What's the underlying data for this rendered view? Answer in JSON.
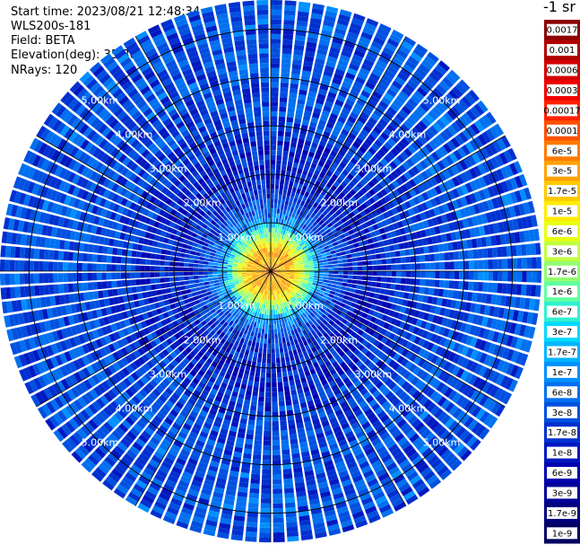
{
  "header": {
    "start_time": "Start time: 2023/08/21 12:48:34",
    "device": "WLS200s-181",
    "field": "Field: BETA",
    "elevation": "Elevation(deg): 35.30",
    "nrays": "NRays: 120"
  },
  "chart_data": {
    "type": "heatmap",
    "projection": "polar-ppi",
    "field": "BETA",
    "elevation_deg": 35.3,
    "n_rays": 120,
    "range_rings_km": [
      1,
      2,
      3,
      4,
      5
    ],
    "ring_labels": [
      "1.00km",
      "2.00km",
      "3.00km",
      "4.00km",
      "5.00km"
    ],
    "max_range_km": 5.6,
    "radial_profile": [
      {
        "range_km": 0.0,
        "value": 0.0001
      },
      {
        "range_km": 0.2,
        "value": 2e-05
      },
      {
        "range_km": 0.4,
        "value": 3e-05
      },
      {
        "range_km": 0.6,
        "value": 6e-06
      },
      {
        "range_km": 0.8,
        "value": 1e-06
      },
      {
        "range_km": 1.0,
        "value": 1e-07
      },
      {
        "range_km": 1.5,
        "value": 1.7e-08
      },
      {
        "range_km": 2.0,
        "value": 1e-08
      },
      {
        "range_km": 3.0,
        "value": 2e-08
      },
      {
        "range_km": 4.0,
        "value": 3e-08
      },
      {
        "range_km": 5.0,
        "value": 3e-08
      },
      {
        "range_km": 5.6,
        "value": 3e-08
      }
    ],
    "colorbar": {
      "unit_label": "-1 sr",
      "labels": [
        "0.0017",
        "0.001",
        "0.0006",
        "0.0003",
        "0.00017",
        "0.0001",
        "6e-5",
        "3e-5",
        "1.7e-5",
        "1e-5",
        "6e-6",
        "3e-6",
        "1.7e-6",
        "1e-6",
        "6e-7",
        "3e-7",
        "1.7e-7",
        "1e-7",
        "6e-8",
        "3e-8",
        "1.7e-8",
        "1e-8",
        "6e-9",
        "3e-9",
        "1.7e-9",
        "1e-9"
      ],
      "colors": [
        "#8b0000",
        "#b00000",
        "#d40000",
        "#f00000",
        "#ff2000",
        "#ff5000",
        "#ff7a00",
        "#ffa000",
        "#ffc800",
        "#ffec00",
        "#e8ff10",
        "#c0ff40",
        "#90ff70",
        "#60ffa0",
        "#30f0d0",
        "#00d8ff",
        "#00b4ff",
        "#0090ff",
        "#0070f0",
        "#0050e0",
        "#0030d0",
        "#0018c0",
        "#0000b0",
        "#000098",
        "#00007c",
        "#000060"
      ]
    }
  }
}
